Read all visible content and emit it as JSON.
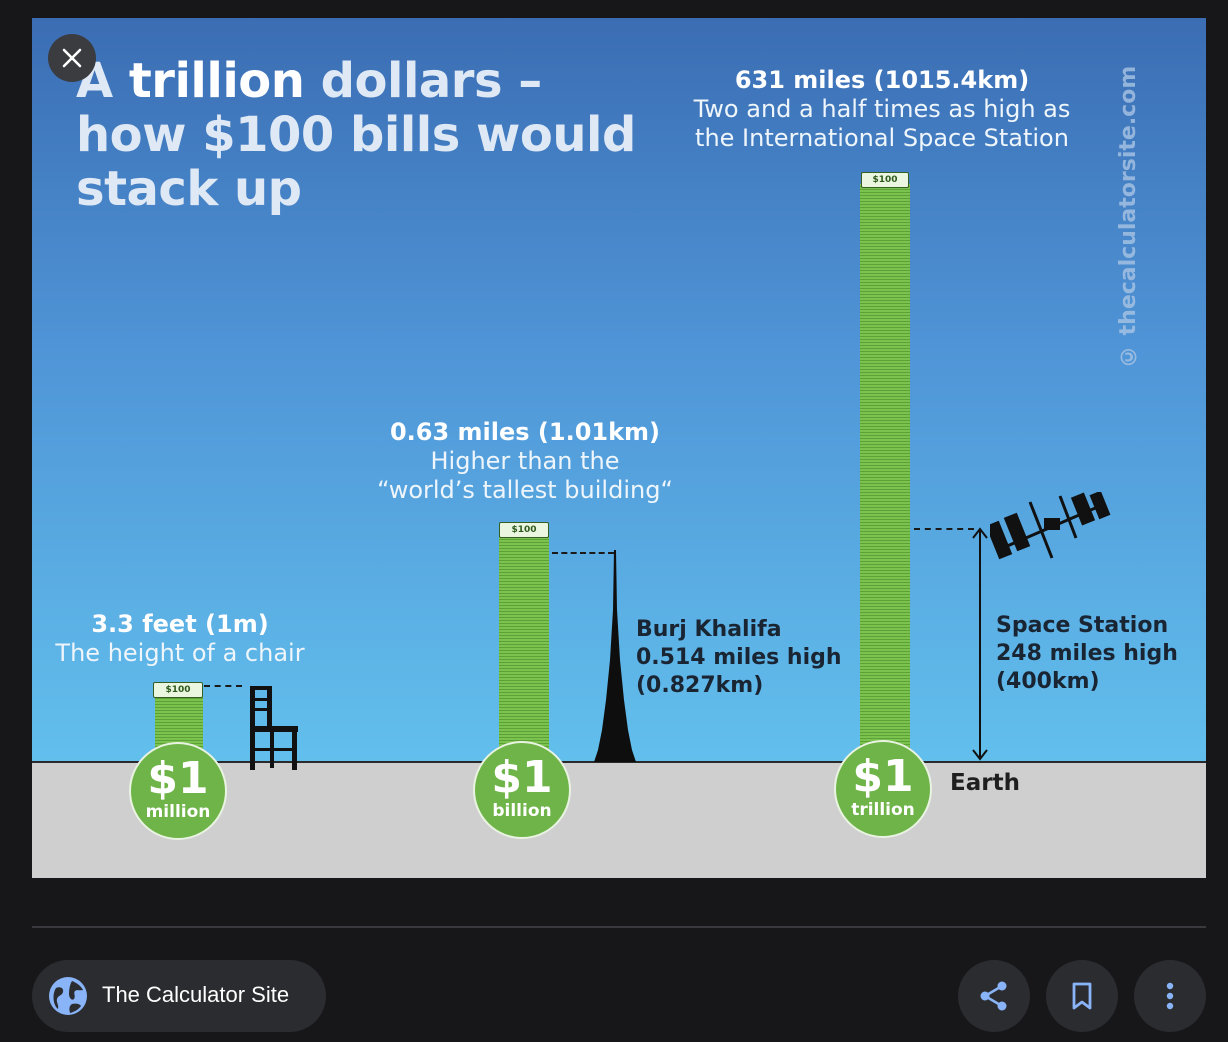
{
  "viewer": {
    "close_icon": "close-icon",
    "source_name": "The Calculator Site",
    "source_icon": "globe-icon",
    "actions": [
      {
        "name": "share",
        "icon": "share-icon"
      },
      {
        "name": "save",
        "icon": "bookmark-icon"
      },
      {
        "name": "more",
        "icon": "more-vert-icon"
      }
    ],
    "accent_color": "#8ab4f8"
  },
  "infographic": {
    "title_line1_pre": "A ",
    "title_line1_bold": "trillion",
    "title_line1_post": " dollars –",
    "title_line2": "how $100 bills would",
    "title_line3": "stack up",
    "watermark": "© thecalculatorsite.com",
    "bill_label": "$100",
    "earth_label": "Earth",
    "colors": {
      "sky_top": "#3b6db3",
      "sky_bottom": "#62bfec",
      "ground": "#cfcfcf",
      "stack_green": "#7ac34e",
      "coin_green": "#6fb449"
    },
    "stacks": [
      {
        "name": "million",
        "height_label": "3.3 feet (1m)",
        "comparison": "The height of a chair",
        "coin_amount": "$1",
        "coin_unit": "million"
      },
      {
        "name": "billion",
        "height_label": "0.63 miles (1.01km)",
        "comparison_line1": "Higher than the",
        "comparison_line2": "“world’s tallest building“",
        "coin_amount": "$1",
        "coin_unit": "billion"
      },
      {
        "name": "trillion",
        "height_label": "631 miles (1015.4km)",
        "comparison_line1": "Two and a half times as high as",
        "comparison_line2": "the International Space Station",
        "coin_amount": "$1",
        "coin_unit": "trillion"
      }
    ],
    "burj": {
      "line1": "Burj Khalifa",
      "line2": "0.514 miles high",
      "line3": "(0.827km)"
    },
    "space_station": {
      "line1": "Space Station",
      "line2": "248 miles high",
      "line3": "(400km)"
    }
  }
}
